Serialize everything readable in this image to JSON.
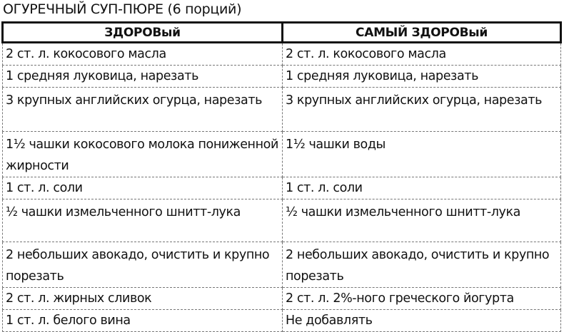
{
  "title": "ОГУРЕЧНЫЙ СУП-ПЮРЕ (6 порций)",
  "headers": [
    "ЗДОРОВый",
    "САМЫЙ ЗДОРОВый"
  ],
  "rows": [
    {
      "healthy": "2 ст. л. кокосового масла",
      "healthiest": "2 ст. л. кокосового масла"
    },
    {
      "healthy": "1 средняя луковица, нарезать",
      "healthiest": "1 средняя луковица, нарезать"
    },
    {
      "healthy": "3 крупных английских огурца, нарезать",
      "healthiest": "3 крупных английских огурца, нарезать"
    },
    {
      "healthy": "1½ чашки кокосового молока пониженной жирности",
      "healthiest": "1½ чашки воды"
    },
    {
      "healthy": "1 ст. л. соли",
      "healthiest": "1 ст. л. соли"
    },
    {
      "healthy": "½ чашки измельченного шнитт-лука",
      "healthiest": "½ чашки измельченного шнитт-лука"
    },
    {
      "healthy": "2 небольших авокадо, очистить и крупно порезать",
      "healthiest": "2 небольших авокадо, очистить и крупно порезать"
    },
    {
      "healthy": "2 ст. л. жирных сливок",
      "healthiest": "2 ст. л. 2%-ного греческого йогурта"
    },
    {
      "healthy": "1 ст. л. белого вина",
      "healthiest": "Не добавлять"
    }
  ]
}
